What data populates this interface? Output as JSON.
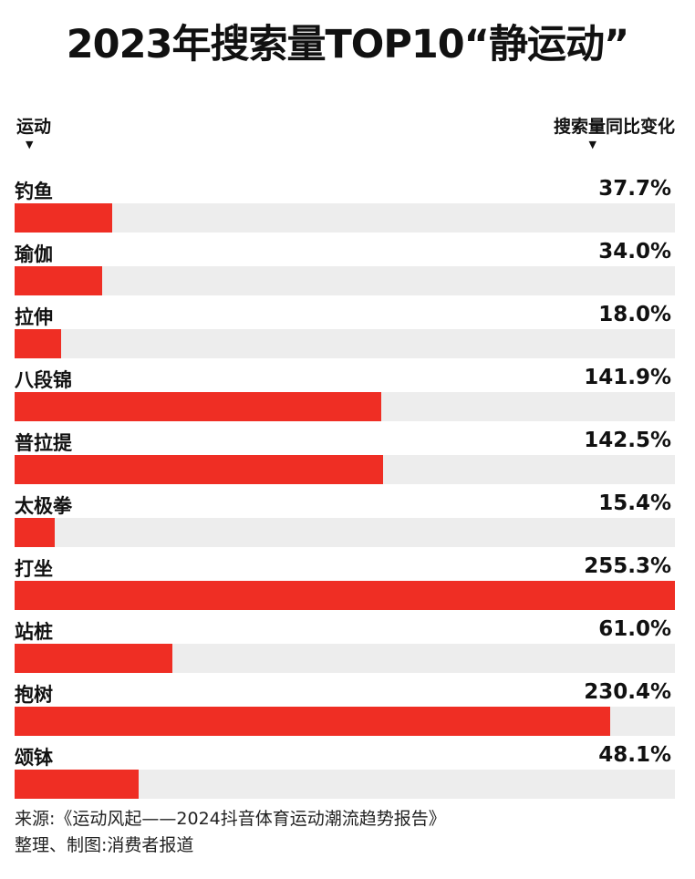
{
  "title": "2023年搜索量TOP10“静运动”",
  "header": {
    "left_label": "运动",
    "right_label": "搜索量同比变化",
    "arrow": "▼"
  },
  "colors": {
    "bar": "#ef2e24",
    "track": "#ededed"
  },
  "chart_data": {
    "type": "bar",
    "orientation": "horizontal",
    "title": "2023年搜索量TOP10“静运动”",
    "xlabel": "搜索量同比变化",
    "ylabel": "运动",
    "unit": "%",
    "xlim": [
      0,
      255.3
    ],
    "categories": [
      "钓鱼",
      "瑜伽",
      "拉伸",
      "八段锦",
      "普拉提",
      "太极拳",
      "打坐",
      "站桩",
      "抱树",
      "颂钵"
    ],
    "values": [
      37.7,
      34.0,
      18.0,
      141.9,
      142.5,
      15.4,
      255.3,
      61.0,
      230.4,
      48.1
    ],
    "labels": [
      "37.7%",
      "34.0%",
      "18.0%",
      "141.9%",
      "142.5%",
      "15.4%",
      "255.3%",
      "61.0%",
      "230.4%",
      "48.1%"
    ]
  },
  "footer": {
    "source": "来源:《运动风起——2024抖音体育运动潮流趋势报告》",
    "credit": "整理、制图:消费者报道"
  }
}
